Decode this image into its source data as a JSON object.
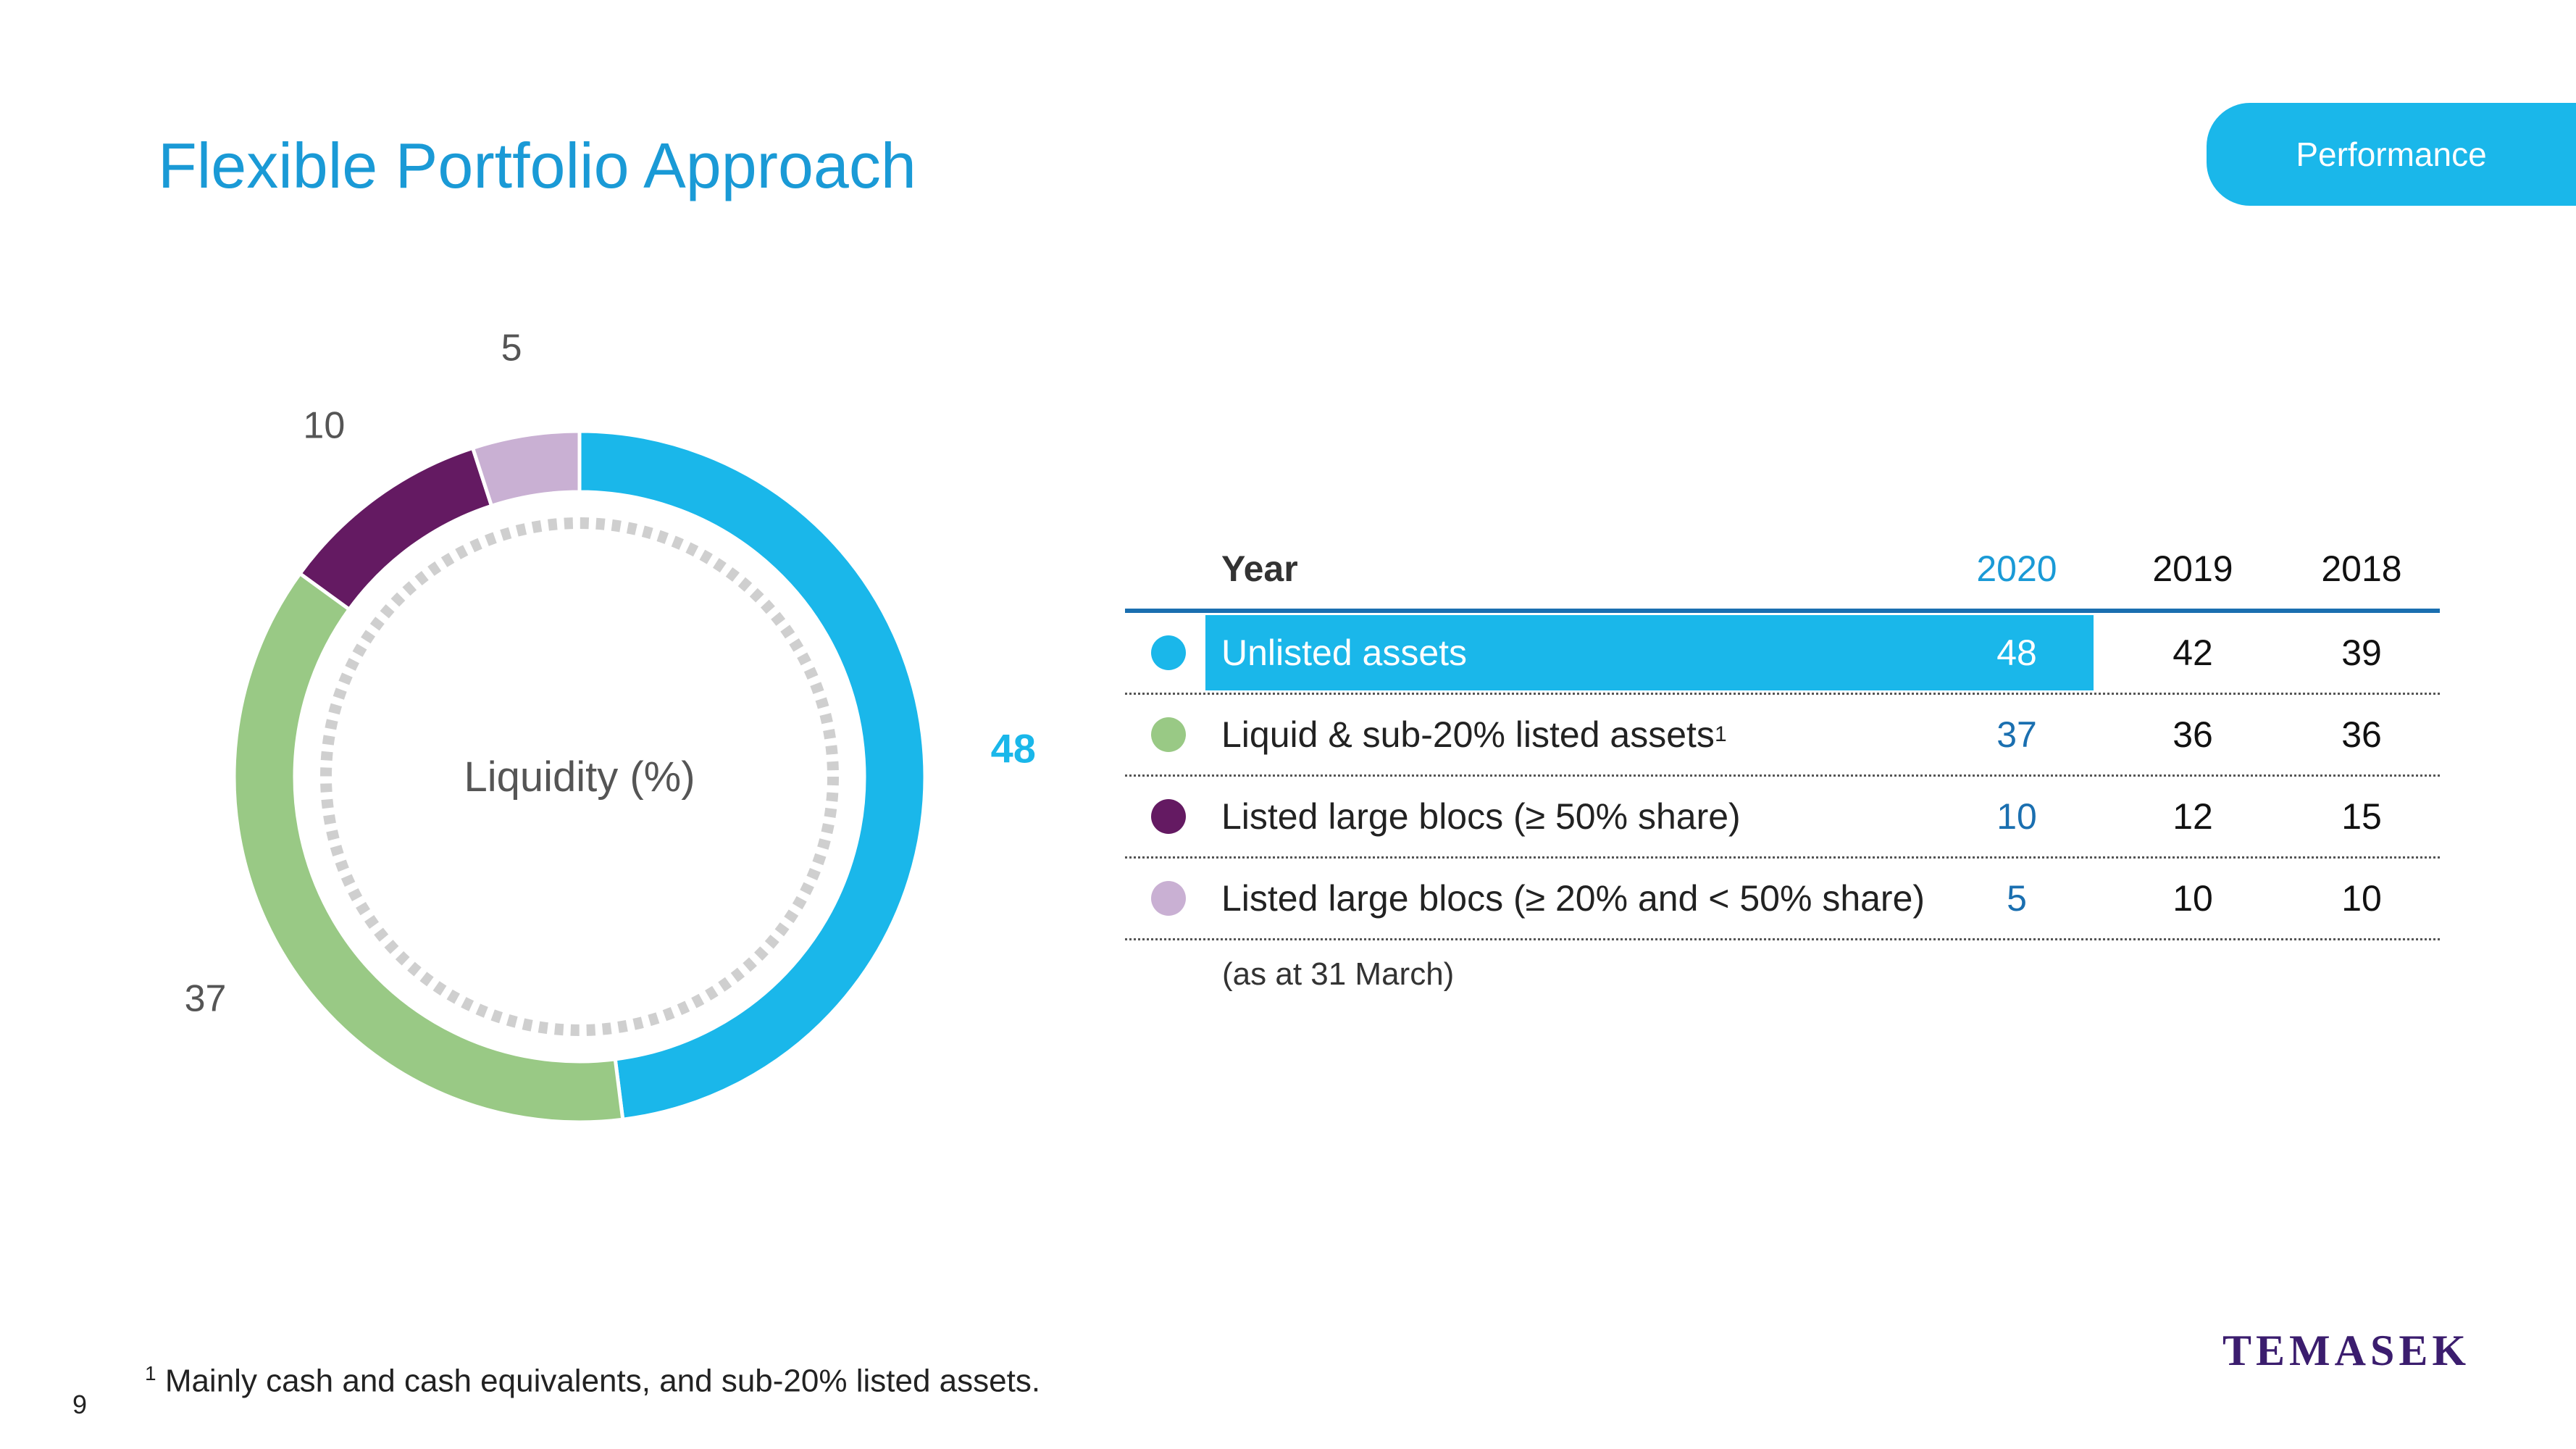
{
  "title": "Flexible Portfolio Approach",
  "section_tab": "Performance",
  "chart_data": {
    "type": "pie",
    "title": "Liquidity (%)",
    "categories": [
      "Unlisted assets",
      "Liquid & sub-20% listed assets",
      "Listed large blocs (≥ 50% share)",
      "Listed large blocs (≥ 20% and < 50% share)"
    ],
    "values": [
      48,
      37,
      10,
      5
    ],
    "colors": [
      "#1ab7ea",
      "#99c985",
      "#641a62",
      "#c9b0d3"
    ],
    "highlight_index": 0
  },
  "table": {
    "header": {
      "label": "Year",
      "years": [
        "2020",
        "2019",
        "2018"
      ]
    },
    "rows": [
      {
        "label": "Unlisted assets",
        "sup": "",
        "v2020": "48",
        "v2019": "42",
        "v2018": "39",
        "color": "#1ab7ea"
      },
      {
        "label": "Liquid & sub-20% listed assets",
        "sup": "1",
        "v2020": "37",
        "v2019": "36",
        "v2018": "36",
        "color": "#99c985"
      },
      {
        "label": "Listed large blocs (≥ 50% share)",
        "sup": "",
        "v2020": "10",
        "v2019": "12",
        "v2018": "15",
        "color": "#641a62"
      },
      {
        "label": "Listed large blocs (≥ 20% and < 50% share)",
        "sup": "",
        "v2020": "5",
        "v2019": "10",
        "v2018": "10",
        "color": "#c9b0d3"
      }
    ],
    "note": "(as at 31 March)"
  },
  "footnote": {
    "marker": "1",
    "text": "Mainly cash and cash equivalents, and sub-20% listed assets."
  },
  "page_number": "9",
  "logo_text": "TEMASEK"
}
